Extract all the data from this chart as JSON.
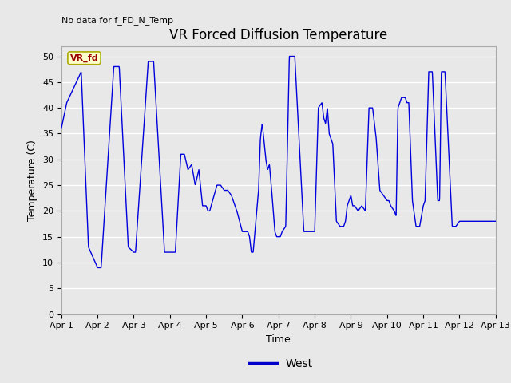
{
  "title": "VR Forced Diffusion Temperature",
  "xlabel": "Time",
  "ylabel": "Temperature (C)",
  "annotation_text": "No data for f_FD_N_Temp",
  "legend_label": "West",
  "legend_line_color": "#0000cc",
  "line_color": "#0000dd",
  "ylim": [
    0,
    52
  ],
  "yticks": [
    0,
    5,
    10,
    15,
    20,
    25,
    30,
    35,
    40,
    45,
    50
  ],
  "background_color": "#e8e8e8",
  "plot_bg_color": "#e8e8e8",
  "grid_color": "#ffffff",
  "vr_fd_box_color": "#ffffcc",
  "vr_fd_text_color": "#990000",
  "title_fontsize": 12,
  "label_fontsize": 9,
  "tick_fontsize": 8,
  "annot_fontsize": 8
}
